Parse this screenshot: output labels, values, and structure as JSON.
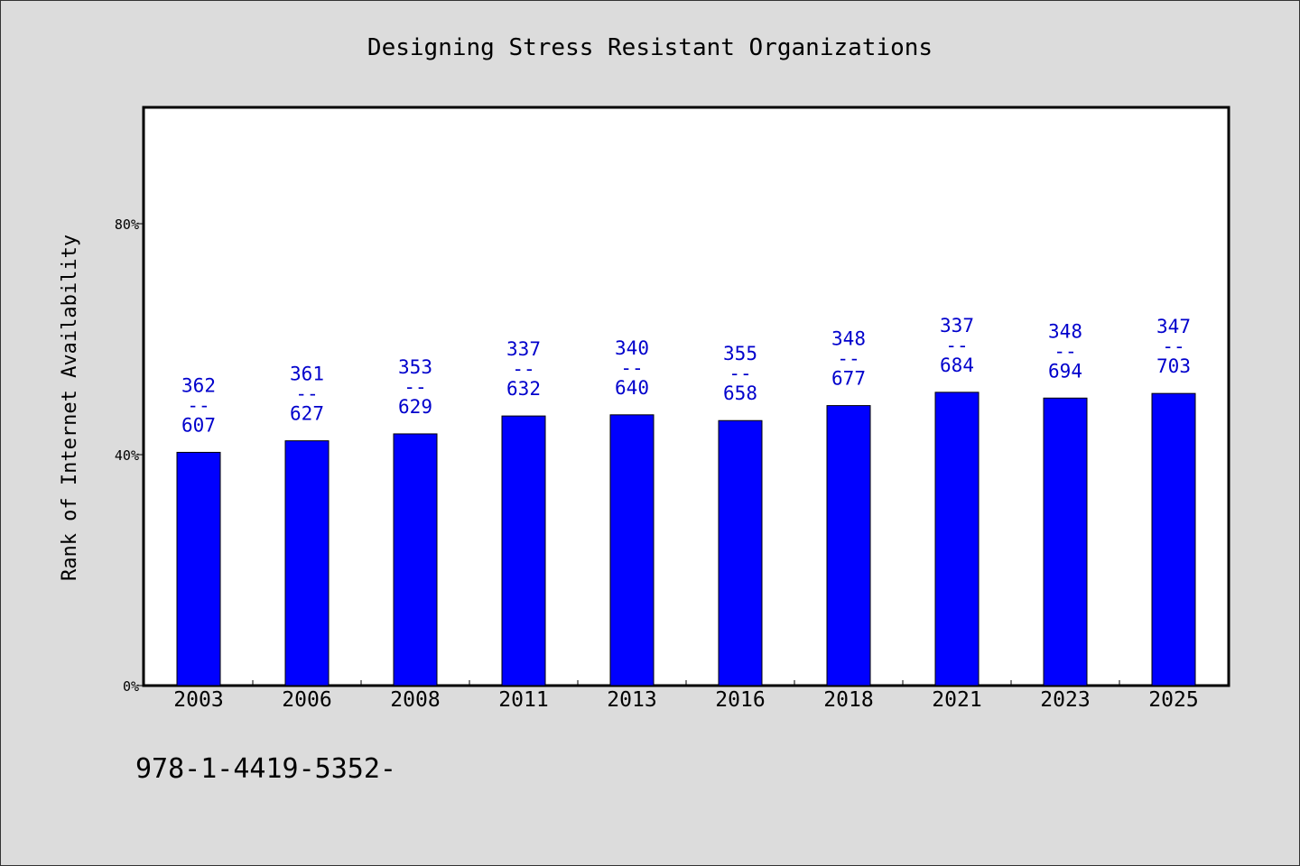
{
  "chart_data": {
    "type": "bar",
    "title": "Designing Stress Resistant Organizations",
    "ylabel": "Rank of Internet Availability",
    "xlabel": "",
    "ylim": [
      0,
      100
    ],
    "yticks": [
      0,
      40,
      80
    ],
    "ytick_labels": [
      "0%",
      "40%",
      "80%"
    ],
    "categories": [
      "2003",
      "2006",
      "2008",
      "2011",
      "2013",
      "2016",
      "2018",
      "2021",
      "2023",
      "2025"
    ],
    "values": [
      40.4,
      42.4,
      43.6,
      46.7,
      46.9,
      45.9,
      48.5,
      50.8,
      49.8,
      50.6
    ],
    "bar_labels": [
      [
        "362",
        "--",
        "607"
      ],
      [
        "361",
        "--",
        "627"
      ],
      [
        "353",
        "--",
        "629"
      ],
      [
        "337",
        "--",
        "632"
      ],
      [
        "340",
        "--",
        "640"
      ],
      [
        "355",
        "--",
        "658"
      ],
      [
        "348",
        "--",
        "677"
      ],
      [
        "337",
        "--",
        "684"
      ],
      [
        "348",
        "--",
        "694"
      ],
      [
        "347",
        "--",
        "703"
      ]
    ],
    "bar_color": "#0000ff",
    "label_color": "#0000cc",
    "grid": false,
    "footnote": "978-1-4419-5352-"
  }
}
